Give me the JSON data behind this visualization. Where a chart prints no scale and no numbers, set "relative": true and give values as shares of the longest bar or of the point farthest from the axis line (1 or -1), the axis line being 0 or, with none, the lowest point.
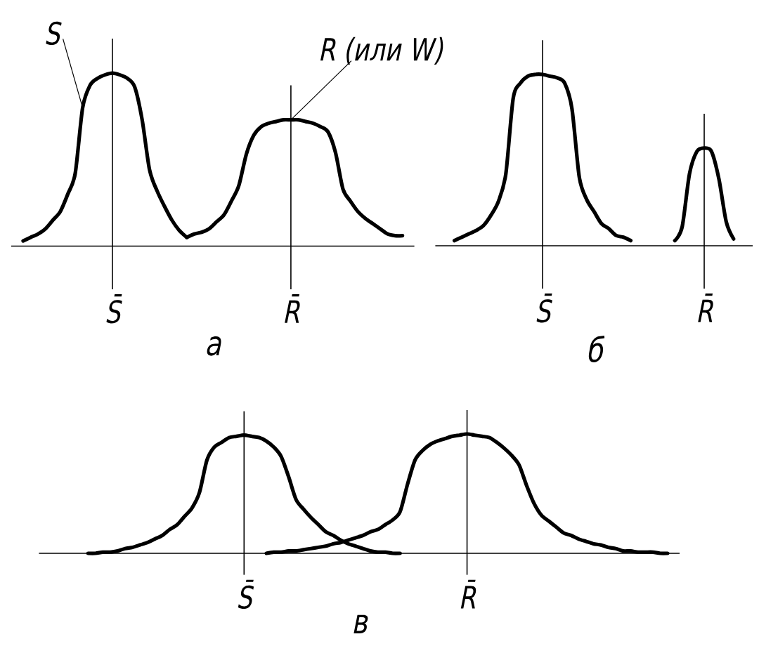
{
  "chart_data": [
    {
      "type": "line",
      "title": "а",
      "relative": true,
      "grid": "x",
      "tick_labels": "x",
      "categories": [
        null,
        null,
        null,
        null,
        null,
        null,
        null,
        null,
        null,
        null,
        null,
        null,
        null,
        "S̄",
        null,
        null,
        null,
        null,
        null,
        null,
        null,
        null,
        null,
        null,
        null,
        null,
        null,
        null,
        null,
        null,
        null,
        null,
        null,
        null,
        null,
        null,
        null,
        "R̄",
        null,
        null,
        null,
        null,
        null,
        null,
        null,
        null,
        null,
        null,
        null,
        null,
        null,
        null,
        null,
        null
      ],
      "series": [
        {
          "name": "S",
          "color": "#000000",
          "values": [
            null,
            0.03,
            0.05,
            0.07,
            0.1,
            0.15,
            0.2,
            0.3,
            0.42,
            0.8,
            0.93,
            0.97,
            0.99,
            1,
            0.99,
            0.97,
            0.92,
            0.73,
            0.44,
            0.32,
            0.23,
            0.15,
            0.09,
            0.05,
            null,
            null,
            null,
            null,
            null,
            null,
            null,
            null,
            null,
            null,
            null,
            null,
            null,
            null,
            null,
            null,
            null,
            null,
            null,
            null,
            null,
            null,
            null,
            null,
            null,
            null,
            null,
            null,
            null,
            null
          ]
        },
        {
          "name": "R (или W)",
          "color": "#000000",
          "values": [
            null,
            null,
            null,
            null,
            null,
            null,
            null,
            null,
            null,
            null,
            null,
            null,
            null,
            null,
            null,
            null,
            null,
            null,
            null,
            null,
            null,
            null,
            null,
            0.05,
            0.07,
            0.08,
            0.1,
            0.14,
            0.18,
            0.26,
            0.35,
            0.53,
            0.64,
            0.69,
            0.71,
            0.72,
            0.73,
            0.73,
            0.73,
            0.72,
            0.71,
            0.69,
            0.66,
            0.54,
            0.33,
            0.26,
            0.2,
            0.16,
            0.13,
            0.1,
            0.07,
            0.06,
            0.06,
            null
          ]
        }
      ]
    },
    {
      "type": "line",
      "title": "б",
      "relative": true,
      "grid": "x",
      "tick_labels": "x",
      "categories": [
        null,
        null,
        null,
        null,
        null,
        null,
        null,
        null,
        null,
        null,
        null,
        null,
        null,
        null,
        "S̄",
        null,
        null,
        null,
        null,
        null,
        null,
        null,
        null,
        null,
        null,
        null,
        null,
        null,
        null,
        null,
        null,
        null,
        null,
        null,
        null,
        null,
        "R̄",
        null,
        null,
        null,
        null,
        null,
        null
      ],
      "series": [
        {
          "color": "#000000",
          "values": [
            null,
            null,
            0.03,
            0.05,
            0.07,
            0.09,
            0.12,
            0.18,
            0.26,
            0.42,
            0.86,
            0.95,
            0.99,
            1,
            1,
            0.99,
            0.98,
            0.95,
            0.8,
            0.4,
            0.27,
            0.2,
            0.13,
            0.1,
            0.06,
            0.05,
            0.03,
            null,
            null,
            null,
            null,
            null,
            null,
            null,
            null,
            null,
            null,
            null,
            null,
            null,
            null,
            null,
            null
          ]
        },
        {
          "color": "#000000",
          "values": [
            null,
            null,
            null,
            null,
            null,
            null,
            null,
            null,
            null,
            null,
            null,
            null,
            null,
            null,
            null,
            null,
            null,
            null,
            null,
            null,
            null,
            null,
            null,
            null,
            null,
            null,
            null,
            null,
            null,
            null,
            null,
            null,
            0.03,
            0.11,
            0.42,
            0.55,
            0.57,
            0.55,
            0.39,
            0.14,
            0.04,
            null,
            null
          ]
        }
      ]
    },
    {
      "type": "line",
      "title": "в",
      "relative": true,
      "grid": "x",
      "tick_labels": "x",
      "categories": [
        null,
        null,
        null,
        null,
        null,
        null,
        null,
        null,
        null,
        null,
        null,
        null,
        null,
        null,
        null,
        null,
        null,
        null,
        null,
        null,
        null,
        null,
        null,
        null,
        null,
        null,
        null,
        "S̄",
        null,
        null,
        null,
        null,
        null,
        null,
        null,
        null,
        null,
        null,
        null,
        null,
        null,
        null,
        null,
        null,
        null,
        null,
        null,
        null,
        null,
        null,
        null,
        null,
        null,
        null,
        null,
        null,
        null,
        "R̄",
        null,
        null,
        null,
        null,
        null,
        null,
        null,
        null,
        null,
        null,
        null,
        null,
        null,
        null,
        null,
        null,
        null,
        null,
        null,
        null,
        null,
        null,
        null,
        null,
        null,
        null,
        null,
        null
      ],
      "series": [
        {
          "color": "#000000",
          "values": [
            null,
            null,
            null,
            null,
            null,
            null,
            0,
            0,
            0.01,
            0.01,
            0.02,
            0.04,
            0.05,
            0.07,
            0.09,
            0.12,
            0.15,
            0.2,
            0.24,
            0.31,
            0.38,
            0.51,
            0.78,
            0.89,
            0.93,
            0.97,
            0.98,
            0.99,
            0.98,
            0.97,
            0.94,
            0.89,
            0.81,
            0.64,
            0.45,
            0.37,
            0.3,
            0.24,
            0.18,
            0.15,
            0.11,
            0.08,
            0.06,
            0.04,
            0.02,
            0.01,
            0.01,
            0,
            0,
            null,
            null,
            null,
            null,
            null,
            null,
            null,
            null,
            null,
            null,
            null,
            null,
            null,
            null,
            null,
            null,
            null,
            null,
            null,
            null,
            null,
            null,
            null,
            null,
            null,
            null,
            null,
            null,
            null,
            null,
            null,
            null,
            null,
            null,
            null,
            null,
            null
          ]
        },
        {
          "color": "#000000",
          "values": [
            null,
            null,
            null,
            null,
            null,
            null,
            null,
            null,
            null,
            null,
            null,
            null,
            null,
            null,
            null,
            null,
            null,
            null,
            null,
            null,
            null,
            null,
            null,
            null,
            null,
            null,
            null,
            null,
            null,
            null,
            0,
            0.01,
            0.01,
            0.02,
            0.02,
            0.03,
            0.04,
            0.05,
            0.06,
            0.08,
            0.09,
            0.11,
            0.13,
            0.15,
            0.18,
            0.2,
            0.24,
            0.28,
            0.35,
            0.58,
            0.78,
            0.86,
            0.91,
            0.94,
            0.96,
            0.98,
            0.99,
            1,
            0.99,
            0.98,
            0.97,
            0.93,
            0.88,
            0.82,
            0.74,
            0.57,
            0.42,
            0.32,
            0.27,
            0.22,
            0.17,
            0.15,
            0.12,
            0.1,
            0.08,
            0.07,
            0.05,
            0.04,
            0.02,
            0.02,
            0.01,
            0.01,
            0.01,
            0,
            0,
            null
          ]
        }
      ]
    }
  ]
}
